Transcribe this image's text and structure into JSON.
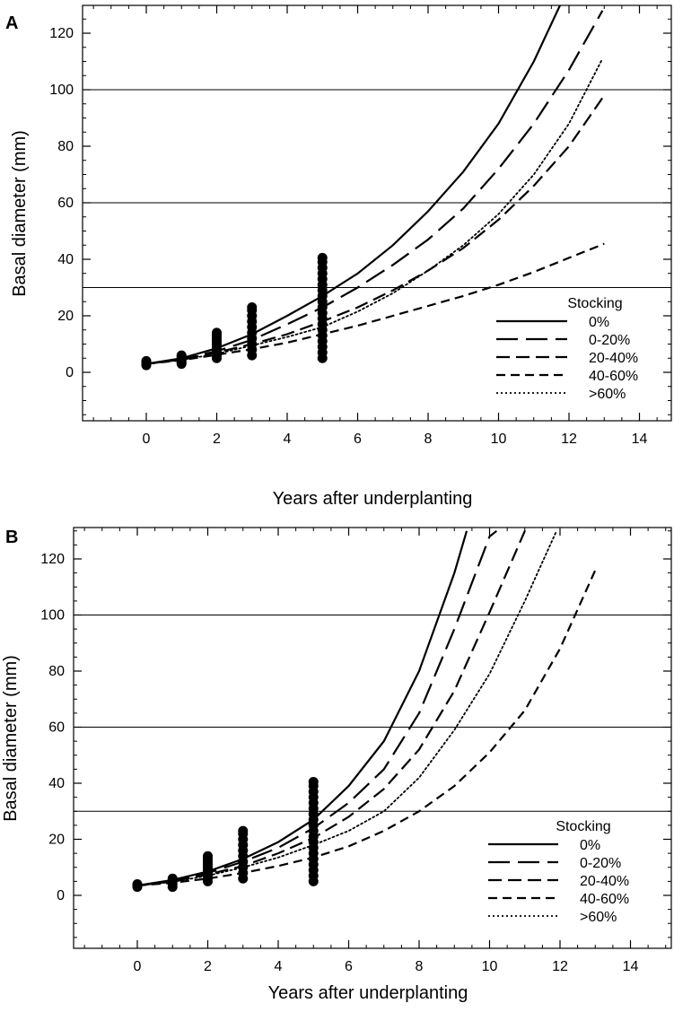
{
  "chart_data": [
    {
      "panel": "A",
      "type": "line",
      "xlabel": "Years after underplanting",
      "ylabel": "Basal diameter (mm)",
      "xlim": [
        -2,
        15
      ],
      "ylim": [
        -18,
        130
      ],
      "xticks": [
        0,
        2,
        4,
        6,
        8,
        10,
        12,
        14
      ],
      "yticks": [
        0,
        20,
        40,
        60,
        80,
        100,
        120
      ],
      "hlines": [
        30,
        60,
        100
      ],
      "legend": {
        "title": "Stocking",
        "placement": "bottom-right",
        "labels": [
          "0%",
          "0-20%",
          "20-40%",
          "40-60%",
          ">60%"
        ]
      },
      "series": [
        {
          "name": "0%",
          "style": "solid",
          "x": [
            0,
            1,
            2,
            3,
            4,
            5,
            6,
            7,
            8,
            9,
            10,
            11,
            11.75
          ],
          "y": [
            3,
            5,
            8.5,
            13.5,
            20,
            27,
            35,
            45,
            57,
            71,
            88,
            110,
            130
          ]
        },
        {
          "name": "0-20%",
          "style": "longdash",
          "x": [
            0,
            1,
            2,
            3,
            4,
            5,
            6,
            7,
            8,
            9,
            10,
            11,
            12,
            12.95
          ],
          "y": [
            3,
            4.8,
            7.5,
            11.5,
            17,
            23,
            30,
            38,
            47,
            58,
            72,
            88,
            107,
            128
          ]
        },
        {
          "name": "20-40%",
          "style": "dash",
          "x": [
            0,
            1,
            2,
            3,
            4,
            5,
            6,
            7,
            8,
            9,
            10,
            11,
            12,
            13
          ],
          "y": [
            3,
            4.5,
            7,
            10,
            13.5,
            18,
            23,
            29,
            36,
            44,
            54,
            66,
            80,
            98
          ]
        },
        {
          "name": "40-60%",
          "style": "shortdash",
          "x": [
            0,
            1,
            2,
            3,
            4,
            5,
            6,
            7,
            8,
            9,
            10,
            11,
            12,
            13
          ],
          "y": [
            3,
            4.3,
            6.2,
            8.2,
            10.5,
            13.5,
            16.5,
            20,
            23.5,
            27,
            31,
            35.5,
            40.5,
            45.5
          ]
        },
        {
          "name": ">60%",
          "style": "dotted",
          "x": [
            0,
            1,
            2,
            3,
            4,
            5,
            6,
            7,
            8,
            9,
            10,
            11,
            12,
            12.95
          ],
          "y": [
            3,
            4.4,
            6.5,
            9.5,
            12.5,
            16,
            21.5,
            28,
            36,
            45,
            56,
            70,
            88,
            111
          ]
        }
      ],
      "observations": [
        {
          "x": 0,
          "y": [
            2.5,
            3,
            3.5,
            4
          ]
        },
        {
          "x": 1,
          "y": [
            3,
            3.5,
            4,
            4.5,
            5,
            5.5,
            6
          ]
        },
        {
          "x": 2,
          "y": [
            5,
            6,
            7,
            8,
            9,
            10,
            11,
            12,
            13,
            14
          ]
        },
        {
          "x": 3,
          "y": [
            6,
            8,
            10,
            12,
            14,
            16,
            18,
            20,
            22,
            23
          ]
        },
        {
          "x": 5,
          "y": [
            5,
            7,
            9,
            11,
            13,
            15,
            17,
            19,
            21,
            23,
            25,
            27,
            29,
            31,
            33,
            35,
            37,
            39,
            40.5
          ]
        }
      ]
    },
    {
      "panel": "B",
      "type": "line",
      "xlabel": "Years after underplanting",
      "ylabel": "Basal diameter (mm)",
      "xlim": [
        -2,
        15
      ],
      "ylim": [
        -18,
        130
      ],
      "xticks": [
        0,
        2,
        4,
        6,
        8,
        10,
        12,
        14
      ],
      "yticks": [
        0,
        20,
        40,
        60,
        80,
        100,
        120
      ],
      "hlines": [
        30,
        60,
        100
      ],
      "legend": {
        "title": "Stocking",
        "placement": "bottom-right",
        "labels": [
          "0%",
          "0-20%",
          "20-40%",
          "40-60%",
          ">60%"
        ]
      },
      "series": [
        {
          "name": "0%",
          "style": "solid",
          "x": [
            0,
            1,
            2,
            3,
            4,
            5,
            6,
            7,
            8,
            9,
            9.35
          ],
          "y": [
            3.5,
            5.5,
            8.5,
            13,
            19,
            27,
            39,
            55,
            80,
            115,
            130
          ]
        },
        {
          "name": "0-20%",
          "style": "longdash",
          "x": [
            0,
            1,
            2,
            3,
            4,
            5,
            6,
            7,
            8,
            9,
            10,
            10.2
          ],
          "y": [
            3.5,
            5.2,
            8,
            12,
            17,
            24,
            33,
            45,
            65,
            95,
            128,
            130
          ]
        },
        {
          "name": "20-40%",
          "style": "dash",
          "x": [
            0,
            1,
            2,
            3,
            4,
            5,
            6,
            7,
            8,
            9,
            10,
            11,
            11.2
          ],
          "y": [
            3.5,
            5,
            7.5,
            10.5,
            15,
            20.5,
            28,
            38,
            52,
            73,
            101,
            130,
            130
          ]
        },
        {
          "name": "40-60%",
          "style": "shortdash",
          "x": [
            0,
            1,
            2,
            3,
            4,
            5,
            6,
            7,
            8,
            9,
            10,
            11,
            12,
            13
          ],
          "y": [
            3.5,
            4.5,
            6,
            8,
            10.5,
            13.5,
            17.5,
            23,
            30,
            39,
            51,
            66,
            88,
            116
          ]
        },
        {
          "name": ">60%",
          "style": "dotted",
          "x": [
            0,
            1,
            2,
            3,
            4,
            5,
            6,
            7,
            8,
            9,
            10,
            11,
            11.9
          ],
          "y": [
            3.5,
            4.8,
            7,
            10,
            13.5,
            18,
            23,
            30,
            42,
            59,
            79,
            105,
            130
          ]
        }
      ],
      "observations": [
        {
          "x": 0,
          "y": [
            3,
            3.5,
            4
          ]
        },
        {
          "x": 1,
          "y": [
            3,
            4,
            5,
            6
          ]
        },
        {
          "x": 2,
          "y": [
            5,
            6,
            7,
            8,
            9,
            10,
            11,
            12,
            13,
            14
          ]
        },
        {
          "x": 3,
          "y": [
            6,
            8,
            10,
            12,
            14,
            16,
            18,
            20,
            22,
            23
          ]
        },
        {
          "x": 5,
          "y": [
            5,
            7,
            9,
            11,
            13,
            15,
            17,
            19,
            21,
            23,
            25,
            27,
            29,
            31,
            33,
            35,
            37,
            39,
            40.5
          ]
        }
      ]
    }
  ]
}
